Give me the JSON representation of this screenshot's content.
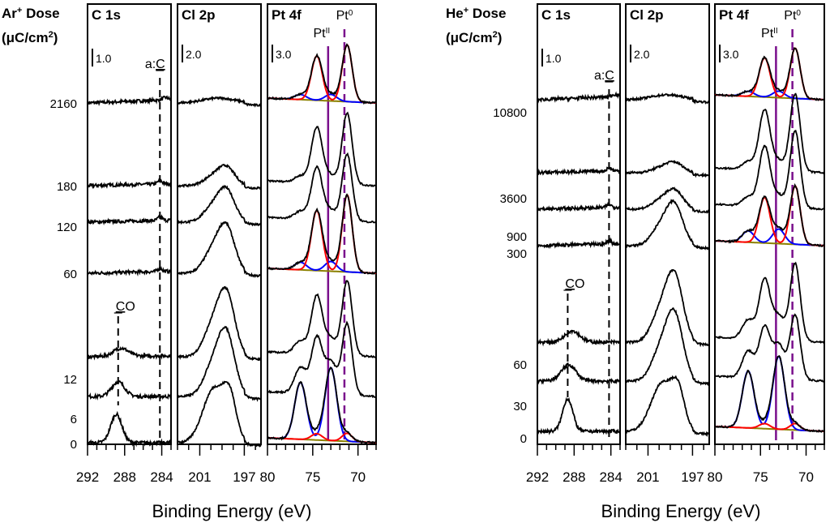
{
  "chart_data": {
    "type": "line",
    "xlabel": "Binding Energy (eV)",
    "colors": {
      "spectrum": "#000000",
      "pt0_fit": "#ff0000",
      "pt2_fit": "#0000ff",
      "background": "#8b8000",
      "pt_marker": "#7a0f8c",
      "ref_dash": "#000000"
    },
    "groups": [
      {
        "id": "ar",
        "dose_title": "Ar⁺ Dose",
        "dose_title_main": "Ar",
        "dose_title_sup": "+",
        "dose_title_rest": " Dose",
        "dose_unit_pre": "(μC/cm",
        "dose_unit_sup": "2",
        "dose_unit_post": ")",
        "doses": [
          "2160",
          "180",
          "120",
          "60",
          "12",
          "6",
          "0"
        ],
        "panels": [
          {
            "name": "C 1s",
            "xlim": [
              292,
              283
            ],
            "xticks": [
              "292",
              "288",
              "284"
            ],
            "xtick_values": [
              292,
              288,
              284
            ],
            "scale_bar": "1.0",
            "annotations": [
              {
                "text_pre": "a:",
                "text_u": "C",
                "text_post": "",
                "x": 284.2,
                "style": "dashed"
              },
              {
                "text_pre": "",
                "text_u": "C",
                "text_post": "O",
                "x": 288.7,
                "style": "dashed"
              }
            ]
          },
          {
            "name": "Cl 2p",
            "xlim": [
              203,
              195.5
            ],
            "xticks": [
              "201",
              "197"
            ],
            "xtick_values": [
              201,
              197
            ],
            "scale_bar": "2.0",
            "annotations": []
          },
          {
            "name": "Pt 4f",
            "xlim": [
              80,
              68
            ],
            "xticks": [
              "80",
              "75",
              "70"
            ],
            "xtick_values": [
              80,
              75,
              70
            ],
            "scale_bar": "3.0",
            "annotations": [
              {
                "text_pre": "Pt",
                "sup": "II",
                "x": 73.3,
                "style": "solid"
              },
              {
                "text_pre": "Pt",
                "sup": "0",
                "x": 71.5,
                "style": "dashed"
              }
            ]
          }
        ]
      },
      {
        "id": "he",
        "dose_title": "He⁺ Dose",
        "dose_title_main": "He",
        "dose_title_sup": "+",
        "dose_title_rest": " Dose",
        "dose_unit_pre": "(μC/cm",
        "dose_unit_sup": "2",
        "dose_unit_post": ")",
        "doses": [
          "10800",
          "3600",
          "900",
          "300",
          "60",
          "30",
          "0"
        ],
        "panels": [
          {
            "name": "C 1s",
            "xlim": [
              292,
              283
            ],
            "xticks": [
              "292",
              "288",
              "284"
            ],
            "xtick_values": [
              292,
              288,
              284
            ],
            "scale_bar": "1.0",
            "annotations": [
              {
                "text_pre": "a:",
                "text_u": "C",
                "text_post": "",
                "x": 284.2,
                "style": "dashed"
              },
              {
                "text_pre": "",
                "text_u": "C",
                "text_post": "O",
                "x": 288.7,
                "style": "dashed"
              }
            ]
          },
          {
            "name": "Cl 2p",
            "xlim": [
              203,
              195.5
            ],
            "xticks": [
              "201",
              "197"
            ],
            "xtick_values": [
              201,
              197
            ],
            "scale_bar": "2.0",
            "annotations": []
          },
          {
            "name": "Pt 4f",
            "xlim": [
              80,
              68
            ],
            "xticks": [
              "80",
              "75",
              "70"
            ],
            "xtick_values": [
              80,
              75,
              70
            ],
            "scale_bar": "3.0",
            "annotations": [
              {
                "text_pre": "Pt",
                "sup": "II",
                "x": 73.3,
                "style": "solid"
              },
              {
                "text_pre": "Pt",
                "sup": "0",
                "x": 71.5,
                "style": "dashed"
              }
            ]
          }
        ]
      }
    ]
  }
}
